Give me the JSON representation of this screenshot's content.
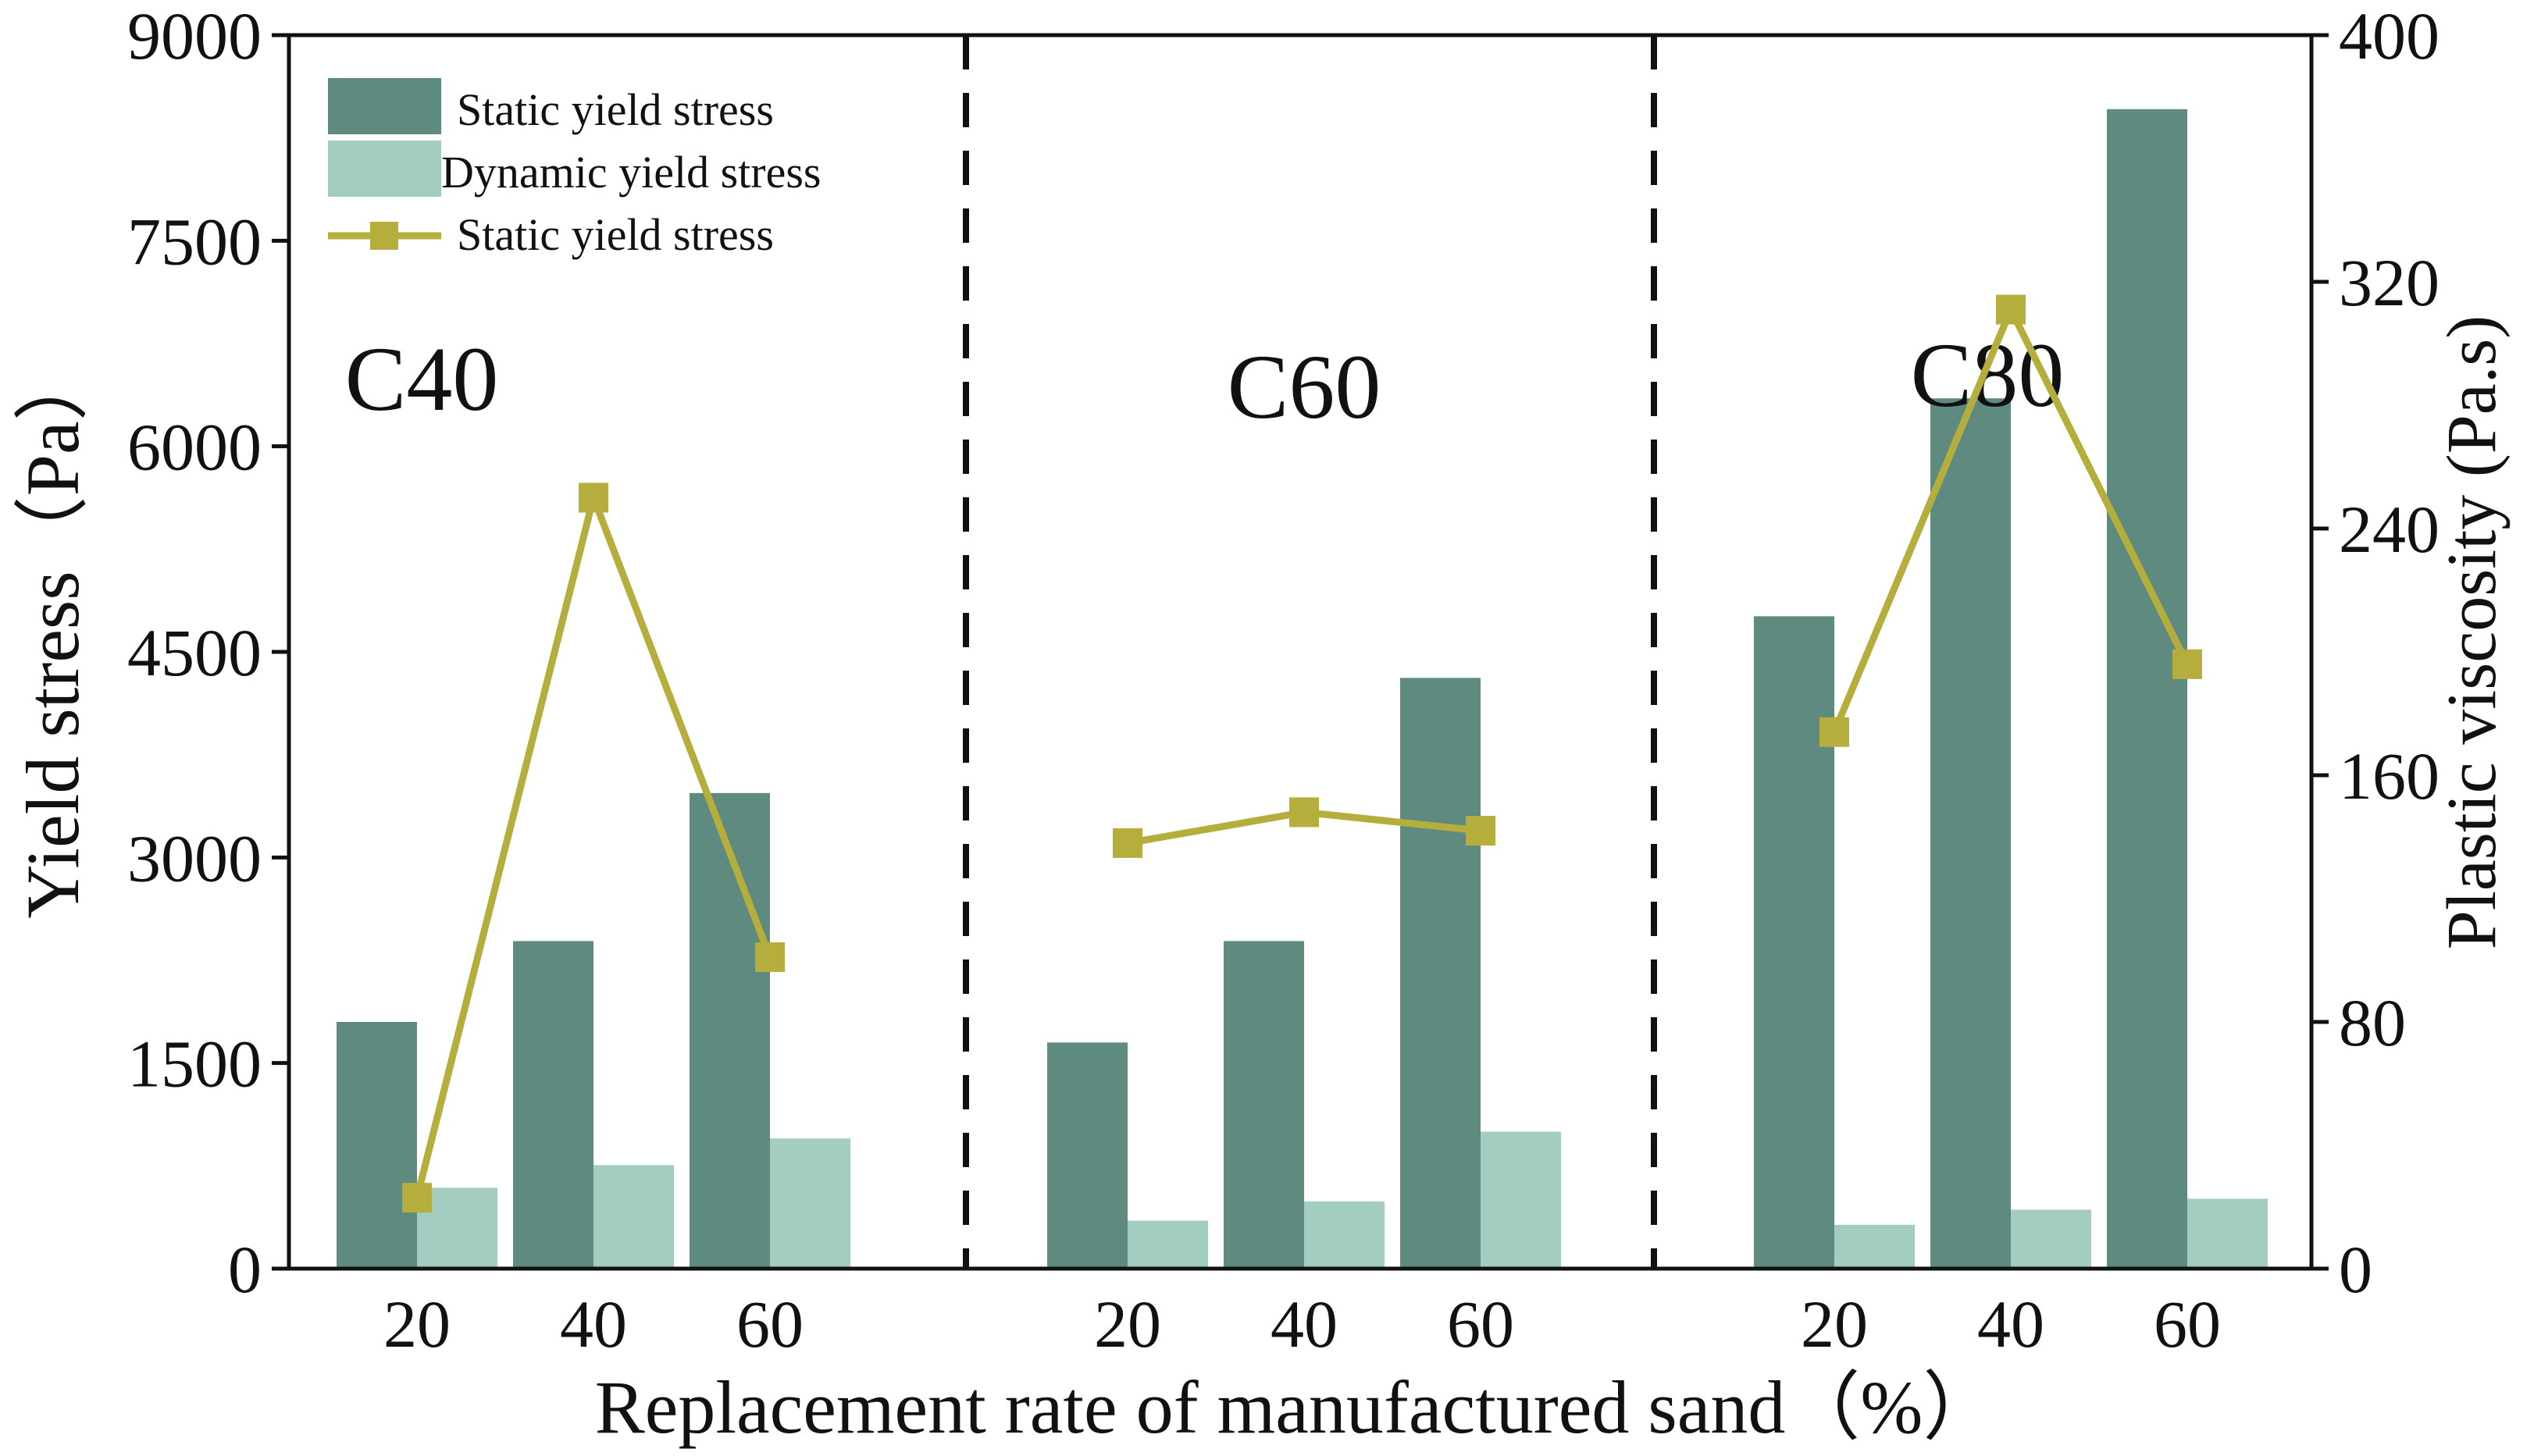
{
  "chart_data": {
    "type": "bar",
    "groups": [
      {
        "label": "C40",
        "categories": [
          "20",
          "40",
          "60"
        ]
      },
      {
        "label": "C60",
        "categories": [
          "20",
          "40",
          "60"
        ]
      },
      {
        "label": "C80",
        "categories": [
          "20",
          "40",
          "60"
        ]
      }
    ],
    "xlabel": "Replacement rate of manufactured sand（%）",
    "ylabel": "Yield stress（Pa）",
    "y2label": "Plastic viscosity (Pa.s)",
    "ylim": [
      0,
      9000
    ],
    "yticks": [
      "0",
      "1500",
      "3000",
      "4500",
      "6000",
      "7500",
      "9000"
    ],
    "y2lim": [
      0,
      400
    ],
    "y2ticks": [
      "0",
      "80",
      "160",
      "240",
      "320",
      "400"
    ],
    "legend_position": "top-left",
    "grid": false,
    "series": [
      {
        "name": "Static yield stress",
        "kind": "bar",
        "axis": "left",
        "color": "#5e8a7f",
        "values": [
          1800,
          2390,
          3470,
          1650,
          2390,
          4310,
          4760,
          6350,
          8460
        ]
      },
      {
        "name": "Dynamic yield stress",
        "kind": "bar",
        "axis": "left",
        "color": "#a3cdc1",
        "values": [
          590,
          755,
          950,
          350,
          490,
          1000,
          320,
          430,
          510
        ]
      },
      {
        "name": "Static yield stress",
        "kind": "line",
        "axis": "right",
        "color": "#b5ad3c",
        "marker": "square",
        "values": [
          23,
          250,
          101,
          138,
          148,
          142,
          174,
          311,
          196
        ]
      }
    ]
  }
}
